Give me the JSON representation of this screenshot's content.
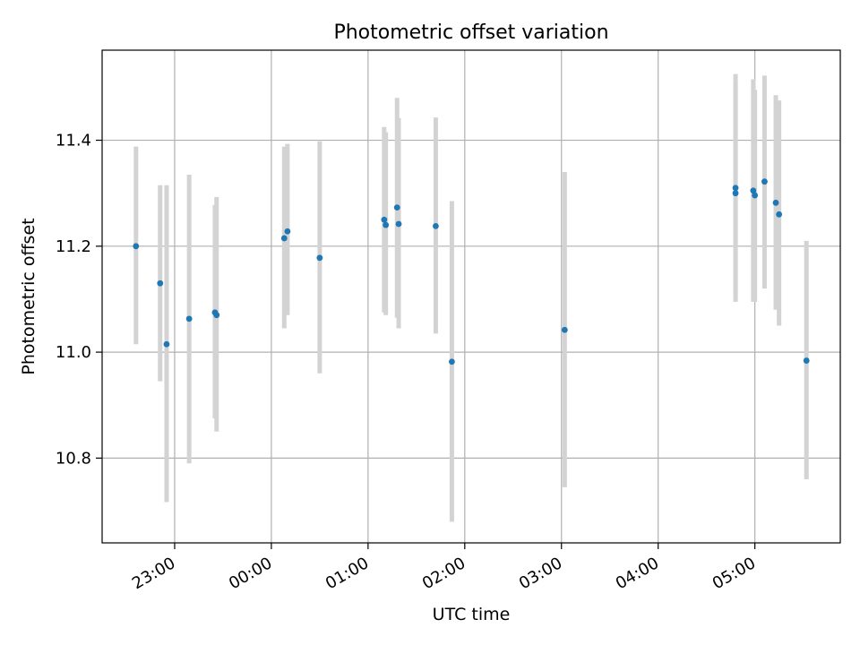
{
  "chart_data": {
    "type": "scatter",
    "title": "Photometric offset variation",
    "xlabel": "UTC time",
    "ylabel": "Photometric offset",
    "x_unit": "UTC time (HH:MM)",
    "xlim": [
      "22:15",
      "05:53"
    ],
    "ylim": [
      10.64,
      11.57
    ],
    "grid": true,
    "legend": "none",
    "x_ticks": [
      "23:00",
      "00:00",
      "01:00",
      "02:00",
      "03:00",
      "04:00",
      "05:00"
    ],
    "y_ticks": [
      "10.8",
      "11.0",
      "11.2",
      "11.4"
    ],
    "colors": {
      "point": "#1f77b4",
      "errorbar": "#d3d3d3",
      "grid": "#b0b0b0"
    },
    "series": [
      {
        "x": [
          "22:36",
          "22:51",
          "22:55",
          "23:09",
          "23:25",
          "23:26",
          "00:08",
          "00:10",
          "00:30",
          "01:10",
          "01:11",
          "01:18",
          "01:19",
          "01:42",
          "01:52",
          "03:02",
          "04:48",
          "04:48",
          "04:59",
          "05:00",
          "05:06",
          "05:13",
          "05:15",
          "05:32"
        ],
        "y": [
          11.2,
          11.13,
          11.015,
          11.063,
          11.075,
          11.07,
          11.215,
          11.228,
          11.178,
          11.25,
          11.24,
          11.273,
          11.242,
          11.238,
          10.982,
          11.042,
          11.31,
          11.3,
          11.305,
          11.296,
          11.322,
          11.282,
          11.26,
          10.984
        ],
        "yerr_low": [
          11.015,
          10.945,
          10.717,
          10.79,
          10.875,
          10.85,
          11.045,
          11.07,
          10.96,
          11.075,
          11.07,
          11.065,
          11.045,
          11.035,
          10.68,
          10.745,
          11.1,
          11.095,
          11.095,
          11.095,
          11.12,
          11.08,
          11.05,
          10.76
        ],
        "yerr_high": [
          11.388,
          11.315,
          11.315,
          11.335,
          11.278,
          11.293,
          11.388,
          11.393,
          11.398,
          11.425,
          11.415,
          11.48,
          11.442,
          11.443,
          11.285,
          11.34,
          11.525,
          11.51,
          11.515,
          11.495,
          11.522,
          11.485,
          11.475,
          11.21
        ]
      }
    ]
  }
}
